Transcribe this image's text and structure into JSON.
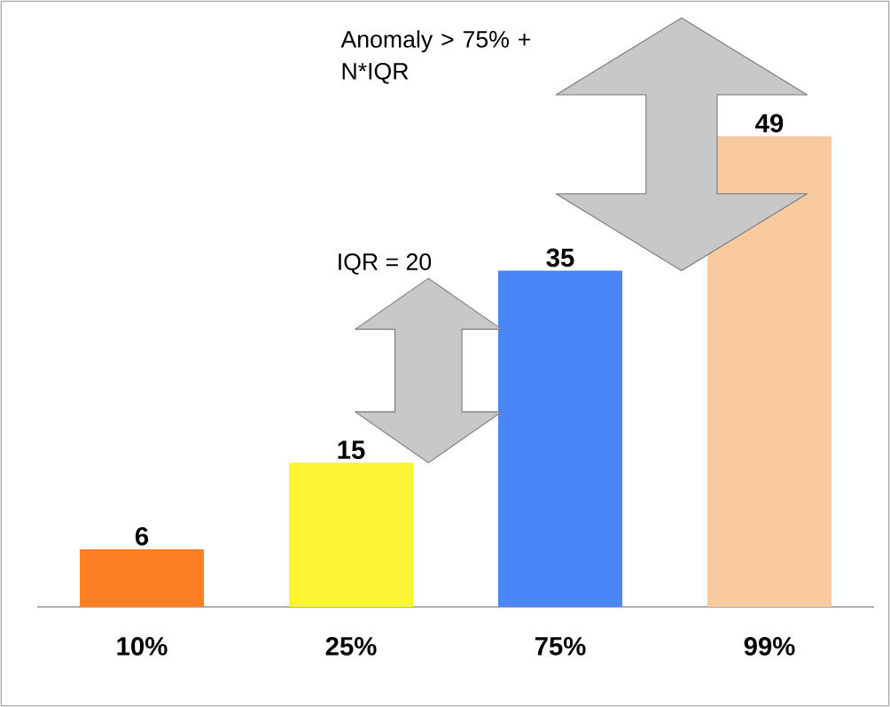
{
  "chart_data": {
    "type": "bar",
    "categories": [
      "10%",
      "25%",
      "75%",
      "99%"
    ],
    "values": [
      6,
      15,
      35,
      49
    ],
    "colors": [
      "#fd7f23",
      "#fbf534",
      "#4a86f8",
      "#f9c9a0"
    ],
    "data_labels": true,
    "annotations": [
      "Anomaly > 75% + N*IQR",
      "IQR = 20"
    ]
  }
}
